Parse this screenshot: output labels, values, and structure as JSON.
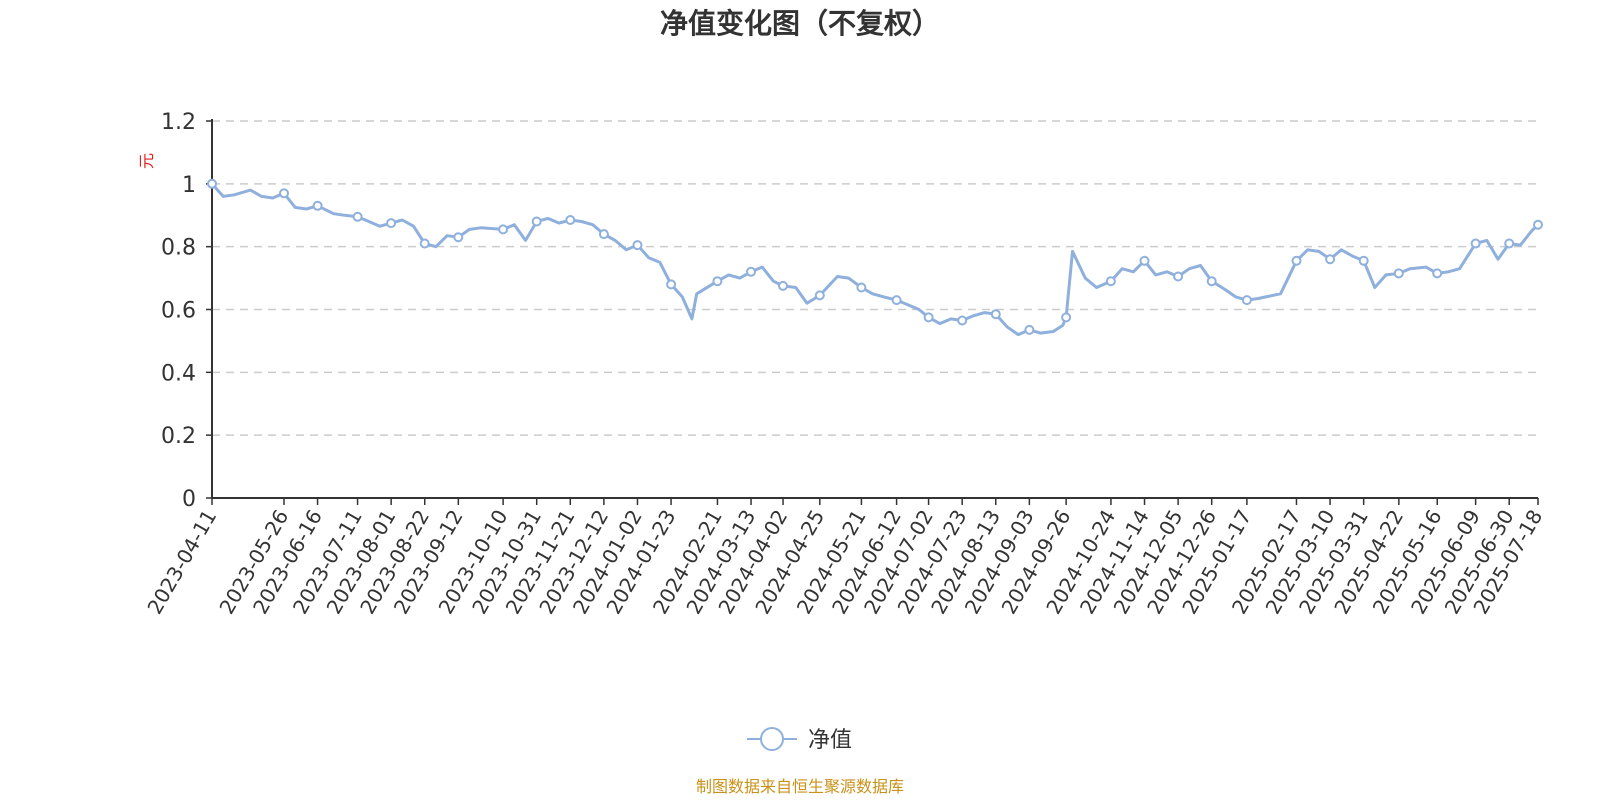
{
  "chart_data": {
    "type": "line",
    "title": "净值变化图（不复权）",
    "ylabel": "元",
    "ylim": [
      0,
      1.2
    ],
    "yticks": [
      0,
      0.2,
      0.4,
      0.6,
      0.8,
      1,
      1.2
    ],
    "xticks": [
      "2023-04-11",
      "2023-05-26",
      "2023-06-16",
      "2023-07-11",
      "2023-08-01",
      "2023-08-22",
      "2023-09-12",
      "2023-10-10",
      "2023-10-31",
      "2023-11-21",
      "2023-12-12",
      "2024-01-02",
      "2024-01-23",
      "2024-02-21",
      "2024-03-13",
      "2024-04-02",
      "2024-04-25",
      "2024-05-21",
      "2024-06-12",
      "2024-07-02",
      "2024-07-23",
      "2024-08-13",
      "2024-09-03",
      "2024-09-26",
      "2024-10-24",
      "2024-11-14",
      "2024-12-05",
      "2024-12-26",
      "2025-01-17",
      "2025-02-17",
      "2025-03-10",
      "2025-03-31",
      "2025-04-22",
      "2025-05-16",
      "2025-06-09",
      "2025-06-30",
      "2025-07-18"
    ],
    "grid": true,
    "legend_position": "bottom-center",
    "series": [
      {
        "name": "净值",
        "color": "#8fb0dc",
        "x": [
          "2023-04-11",
          "2023-04-18",
          "2023-04-25",
          "2023-05-05",
          "2023-05-12",
          "2023-05-19",
          "2023-05-26",
          "2023-06-02",
          "2023-06-09",
          "2023-06-16",
          "2023-06-26",
          "2023-07-03",
          "2023-07-11",
          "2023-07-18",
          "2023-07-25",
          "2023-08-01",
          "2023-08-08",
          "2023-08-15",
          "2023-08-22",
          "2023-08-29",
          "2023-09-05",
          "2023-09-12",
          "2023-09-19",
          "2023-09-26",
          "2023-10-10",
          "2023-10-17",
          "2023-10-24",
          "2023-10-31",
          "2023-11-07",
          "2023-11-14",
          "2023-11-21",
          "2023-11-28",
          "2023-12-05",
          "2023-12-12",
          "2023-12-19",
          "2023-12-26",
          "2024-01-02",
          "2024-01-09",
          "2024-01-16",
          "2024-01-23",
          "2024-01-30",
          "2024-02-05",
          "2024-02-08",
          "2024-02-21",
          "2024-02-28",
          "2024-03-06",
          "2024-03-13",
          "2024-03-20",
          "2024-03-27",
          "2024-04-02",
          "2024-04-10",
          "2024-04-17",
          "2024-04-25",
          "2024-05-06",
          "2024-05-13",
          "2024-05-21",
          "2024-05-28",
          "2024-06-04",
          "2024-06-12",
          "2024-06-19",
          "2024-06-26",
          "2024-07-02",
          "2024-07-09",
          "2024-07-16",
          "2024-07-23",
          "2024-07-30",
          "2024-08-06",
          "2024-08-13",
          "2024-08-20",
          "2024-08-27",
          "2024-09-03",
          "2024-09-10",
          "2024-09-18",
          "2024-09-24",
          "2024-09-26",
          "2024-09-30",
          "2024-10-08",
          "2024-10-15",
          "2024-10-24",
          "2024-10-31",
          "2024-11-07",
          "2024-11-14",
          "2024-11-21",
          "2024-11-28",
          "2024-12-05",
          "2024-12-12",
          "2024-12-19",
          "2024-12-26",
          "2025-01-03",
          "2025-01-10",
          "2025-01-17",
          "2025-01-24",
          "2025-02-07",
          "2025-02-17",
          "2025-02-24",
          "2025-03-03",
          "2025-03-10",
          "2025-03-17",
          "2025-03-24",
          "2025-03-31",
          "2025-04-07",
          "2025-04-14",
          "2025-04-22",
          "2025-04-29",
          "2025-05-09",
          "2025-05-16",
          "2025-05-23",
          "2025-05-30",
          "2025-06-09",
          "2025-06-16",
          "2025-06-23",
          "2025-06-30",
          "2025-07-07",
          "2025-07-14",
          "2025-07-18"
        ],
        "values": [
          1.0,
          0.96,
          0.965,
          0.98,
          0.96,
          0.955,
          0.97,
          0.925,
          0.92,
          0.93,
          0.905,
          0.9,
          0.895,
          0.88,
          0.865,
          0.875,
          0.885,
          0.865,
          0.81,
          0.8,
          0.835,
          0.83,
          0.855,
          0.86,
          0.855,
          0.87,
          0.82,
          0.88,
          0.89,
          0.875,
          0.885,
          0.88,
          0.87,
          0.84,
          0.82,
          0.79,
          0.805,
          0.765,
          0.75,
          0.68,
          0.64,
          0.57,
          0.65,
          0.69,
          0.71,
          0.7,
          0.72,
          0.735,
          0.69,
          0.675,
          0.67,
          0.62,
          0.645,
          0.705,
          0.7,
          0.67,
          0.65,
          0.64,
          0.63,
          0.615,
          0.6,
          0.575,
          0.555,
          0.57,
          0.565,
          0.58,
          0.59,
          0.585,
          0.545,
          0.52,
          0.535,
          0.525,
          0.53,
          0.55,
          0.575,
          0.785,
          0.7,
          0.67,
          0.69,
          0.73,
          0.72,
          0.755,
          0.71,
          0.72,
          0.705,
          0.73,
          0.74,
          0.69,
          0.665,
          0.64,
          0.63,
          0.635,
          0.65,
          0.755,
          0.79,
          0.785,
          0.76,
          0.79,
          0.77,
          0.755,
          0.67,
          0.71,
          0.715,
          0.73,
          0.735,
          0.715,
          0.72,
          0.73,
          0.81,
          0.82,
          0.76,
          0.81,
          0.805,
          0.85,
          0.87
        ]
      }
    ],
    "markers": [
      "2023-04-11",
      "2023-05-26",
      "2023-06-16",
      "2023-07-11",
      "2023-08-01",
      "2023-08-22",
      "2023-09-12",
      "2023-10-10",
      "2023-10-31",
      "2023-11-21",
      "2023-12-12",
      "2024-01-02",
      "2024-01-23",
      "2024-02-21",
      "2024-03-13",
      "2024-04-02",
      "2024-04-25",
      "2024-05-21",
      "2024-06-12",
      "2024-07-02",
      "2024-07-23",
      "2024-08-13",
      "2024-09-03",
      "2024-09-26",
      "2024-10-24",
      "2024-11-14",
      "2024-12-05",
      "2024-12-26",
      "2025-01-17",
      "2025-02-17",
      "2025-03-10",
      "2025-03-31",
      "2025-04-22",
      "2025-05-16",
      "2025-06-09",
      "2025-06-30",
      "2025-07-18"
    ]
  },
  "legend": {
    "label": "净值"
  },
  "source_note": "制图数据来自恒生聚源数据库",
  "colors": {
    "line": "#8fb0dc",
    "ylabel": "#e01f1f",
    "source": "#c8921a",
    "grid": "#cccccc",
    "axis": "#333333"
  }
}
